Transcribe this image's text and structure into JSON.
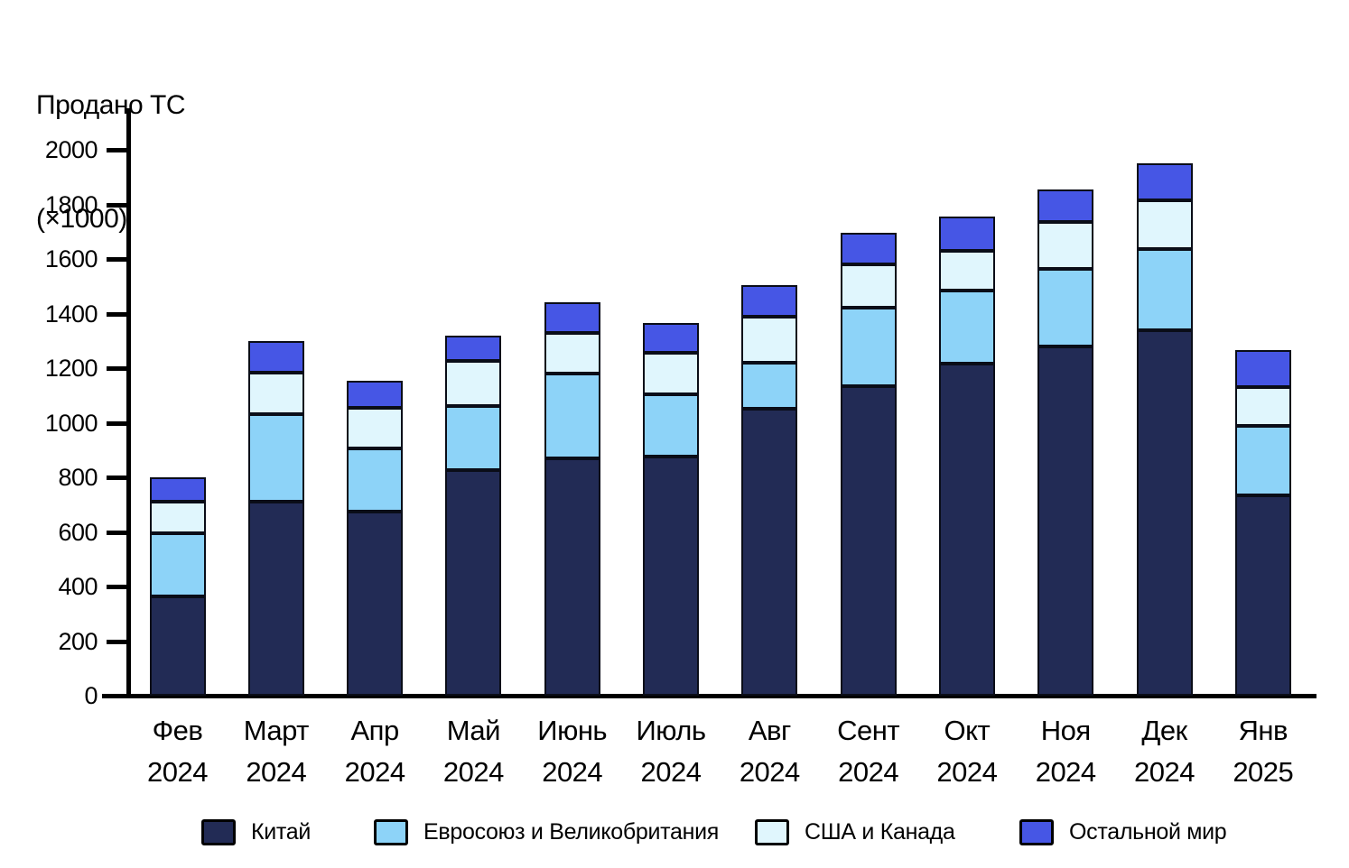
{
  "title": {
    "line1": "Продано ТС",
    "line2": "(×1000)"
  },
  "chart_data": {
    "type": "bar",
    "stacked": true,
    "title": "Продано ТС (×1000)",
    "xlabel": "",
    "ylabel": "Продано ТС (×1000)",
    "ylim": [
      0,
      2000
    ],
    "yticks": [
      0,
      200,
      400,
      600,
      800,
      1000,
      1200,
      1400,
      1600,
      1800,
      2000
    ],
    "grid": false,
    "legend_position": "bottom",
    "categories": [
      {
        "month": "Фев",
        "year": "2024"
      },
      {
        "month": "Март",
        "year": "2024"
      },
      {
        "month": "Апр",
        "year": "2024"
      },
      {
        "month": "Май",
        "year": "2024"
      },
      {
        "month": "Июнь",
        "year": "2024"
      },
      {
        "month": "Июль",
        "year": "2024"
      },
      {
        "month": "Авг",
        "year": "2024"
      },
      {
        "month": "Сент",
        "year": "2024"
      },
      {
        "month": "Окт",
        "year": "2024"
      },
      {
        "month": "Ноя",
        "year": "2024"
      },
      {
        "month": "Дек",
        "year": "2024"
      },
      {
        "month": "Янв",
        "year": "2025"
      }
    ],
    "series": [
      {
        "name": "Китай",
        "color": "#222B55",
        "values": [
          365,
          710,
          675,
          825,
          870,
          875,
          1050,
          1135,
          1215,
          1280,
          1340,
          735
        ]
      },
      {
        "name": "Евросоюз и Великобритания",
        "color": "#8DD3F8",
        "values": [
          230,
          320,
          230,
          235,
          310,
          230,
          170,
          285,
          270,
          285,
          295,
          255
        ]
      },
      {
        "name": "США и Канада",
        "color": "#E0F6FD",
        "values": [
          115,
          155,
          150,
          165,
          150,
          150,
          170,
          160,
          145,
          170,
          180,
          140
        ]
      },
      {
        "name": "Остальной мир",
        "color": "#4656E5",
        "values": [
          90,
          115,
          100,
          95,
          110,
          110,
          115,
          115,
          125,
          120,
          135,
          135
        ]
      }
    ],
    "totals": [
      800,
      1300,
      1155,
      1320,
      1440,
      1365,
      1505,
      1695,
      1755,
      1855,
      1950,
      1265
    ]
  }
}
